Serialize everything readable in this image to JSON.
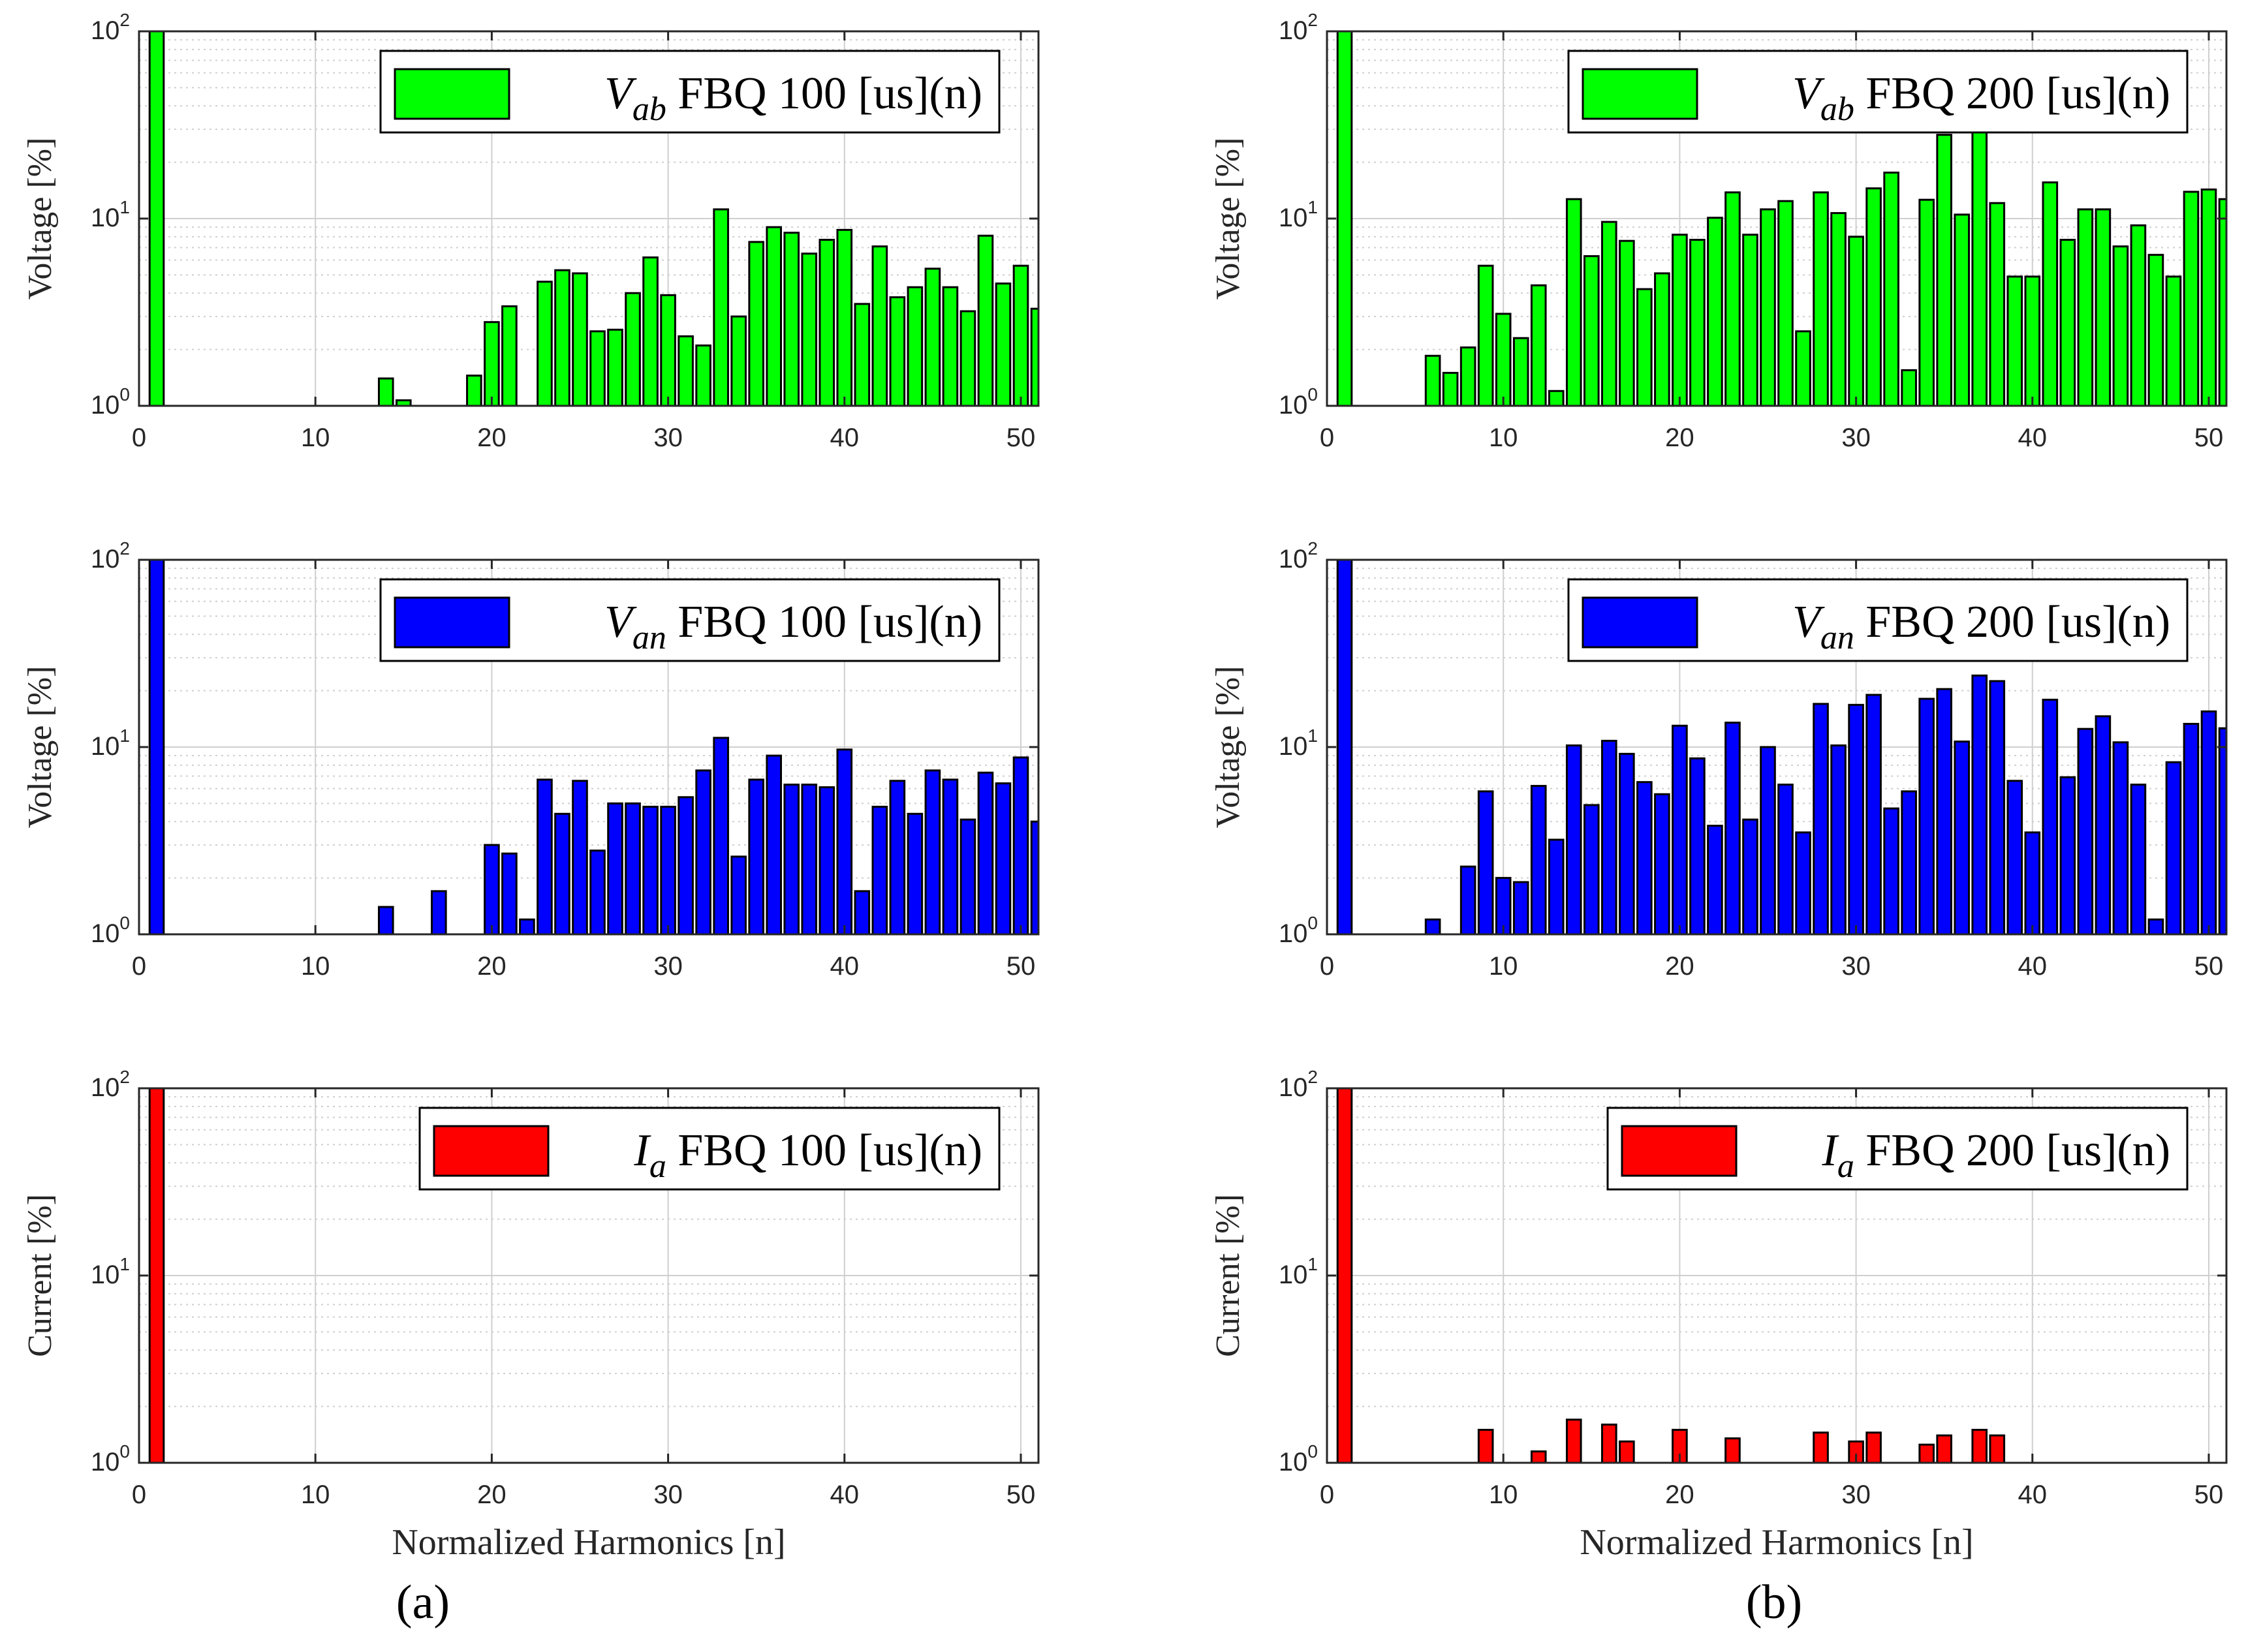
{
  "panel_labels": [
    "(a)",
    "(b)"
  ],
  "colors": {
    "green": "#00ff00",
    "blue": "#0000ff",
    "red": "#ff0000",
    "grid": "#cfcfcf",
    "axis": "#262626"
  },
  "chart_data": [
    {
      "type": "bar",
      "scale": "log",
      "panel": "a",
      "row": 0,
      "ylabel": "Voltage [%]",
      "xlabel": "",
      "legend": {
        "symbol": "V",
        "subscript": "ab",
        "label": "FBQ 100 [us](n)",
        "position": "top-right"
      },
      "color": "#00ff00",
      "xlim": [
        0,
        51
      ],
      "ylim": [
        1,
        100
      ],
      "xticks": [
        0,
        10,
        20,
        30,
        40,
        50
      ],
      "yticks": [
        {
          "base": "10",
          "exp": "0",
          "value": 1
        },
        {
          "base": "10",
          "exp": "1",
          "value": 10
        },
        {
          "base": "10",
          "exp": "2",
          "value": 100
        }
      ],
      "harmonics": [
        1,
        14,
        15,
        19,
        20,
        21,
        23,
        24,
        25,
        26,
        27,
        28,
        29,
        30,
        31,
        32,
        33,
        34,
        35,
        36,
        37,
        38,
        39,
        40,
        41,
        42,
        43,
        44,
        45,
        46,
        47,
        48,
        49,
        50,
        51
      ],
      "values": [
        100,
        1.4,
        1.07,
        1.45,
        2.8,
        3.4,
        4.6,
        5.3,
        5.1,
        2.5,
        2.55,
        4.0,
        6.2,
        3.9,
        2.35,
        2.1,
        11.2,
        3.0,
        7.5,
        9.0,
        8.4,
        6.5,
        7.7,
        8.7,
        3.5,
        7.1,
        3.8,
        4.3,
        5.4,
        4.3,
        3.2,
        8.1,
        4.5,
        5.6,
        3.3
      ]
    },
    {
      "type": "bar",
      "scale": "log",
      "panel": "b",
      "row": 0,
      "ylabel": "Voltage [%]",
      "xlabel": "",
      "legend": {
        "symbol": "V",
        "subscript": "ab",
        "label": "FBQ 200 [us](n)",
        "position": "top-right"
      },
      "color": "#00ff00",
      "xlim": [
        0,
        51
      ],
      "ylim": [
        1,
        100
      ],
      "xticks": [
        0,
        10,
        20,
        30,
        40,
        50
      ],
      "yticks": [
        {
          "base": "10",
          "exp": "0",
          "value": 1
        },
        {
          "base": "10",
          "exp": "1",
          "value": 10
        },
        {
          "base": "10",
          "exp": "2",
          "value": 100
        }
      ],
      "harmonics": [
        1,
        6,
        7,
        8,
        9,
        10,
        11,
        12,
        13,
        14,
        15,
        16,
        17,
        18,
        19,
        20,
        21,
        22,
        23,
        24,
        25,
        26,
        27,
        28,
        29,
        30,
        31,
        32,
        33,
        34,
        35,
        36,
        37,
        38,
        39,
        40,
        41,
        42,
        43,
        44,
        45,
        46,
        47,
        48,
        49,
        50,
        51
      ],
      "values": [
        100,
        1.85,
        1.5,
        2.05,
        5.6,
        3.1,
        2.3,
        4.4,
        1.2,
        12.7,
        6.3,
        9.6,
        7.6,
        4.2,
        5.1,
        8.2,
        7.7,
        10.1,
        13.8,
        8.2,
        11.2,
        12.4,
        2.5,
        13.8,
        10.7,
        8.0,
        14.5,
        17.6,
        1.55,
        12.6,
        28.0,
        10.5,
        29.5,
        12.1,
        4.9,
        4.9,
        15.6,
        7.7,
        11.2,
        11.2,
        7.1,
        9.2,
        6.4,
        4.9,
        13.9,
        14.3,
        12.7
      ]
    },
    {
      "type": "bar",
      "scale": "log",
      "panel": "a",
      "row": 1,
      "ylabel": "Voltage [%]",
      "xlabel": "",
      "legend": {
        "symbol": "V",
        "subscript": "an",
        "label": "FBQ 100 [us](n)",
        "position": "top-right"
      },
      "color": "#0000ff",
      "xlim": [
        0,
        51
      ],
      "ylim": [
        1,
        100
      ],
      "xticks": [
        0,
        10,
        20,
        30,
        40,
        50
      ],
      "yticks": [
        {
          "base": "10",
          "exp": "0",
          "value": 1
        },
        {
          "base": "10",
          "exp": "1",
          "value": 10
        },
        {
          "base": "10",
          "exp": "2",
          "value": 100
        }
      ],
      "harmonics": [
        1,
        14,
        17,
        20,
        21,
        22,
        23,
        24,
        25,
        26,
        27,
        28,
        29,
        30,
        31,
        32,
        33,
        34,
        35,
        36,
        37,
        38,
        39,
        40,
        41,
        42,
        43,
        44,
        45,
        46,
        47,
        48,
        49,
        50,
        51
      ],
      "values": [
        100,
        1.4,
        1.7,
        3.0,
        2.7,
        1.2,
        6.7,
        4.4,
        6.6,
        2.8,
        5.0,
        5.0,
        4.8,
        4.8,
        5.4,
        7.5,
        11.2,
        2.6,
        6.7,
        9.0,
        6.3,
        6.3,
        6.1,
        9.7,
        1.7,
        4.8,
        6.6,
        4.4,
        7.5,
        6.7,
        4.1,
        7.3,
        6.4,
        8.8,
        4.0
      ]
    },
    {
      "type": "bar",
      "scale": "log",
      "panel": "b",
      "row": 1,
      "ylabel": "Voltage [%]",
      "xlabel": "",
      "legend": {
        "symbol": "V",
        "subscript": "an",
        "label": "FBQ 200 [us](n)",
        "position": "top-right"
      },
      "color": "#0000ff",
      "xlim": [
        0,
        51
      ],
      "ylim": [
        1,
        100
      ],
      "xticks": [
        0,
        10,
        20,
        30,
        40,
        50
      ],
      "yticks": [
        {
          "base": "10",
          "exp": "0",
          "value": 1
        },
        {
          "base": "10",
          "exp": "1",
          "value": 10
        },
        {
          "base": "10",
          "exp": "2",
          "value": 100
        }
      ],
      "harmonics": [
        1,
        6,
        8,
        9,
        10,
        11,
        12,
        13,
        14,
        15,
        16,
        17,
        18,
        19,
        20,
        21,
        22,
        23,
        24,
        25,
        26,
        27,
        28,
        29,
        30,
        31,
        32,
        33,
        34,
        35,
        36,
        37,
        38,
        39,
        40,
        41,
        42,
        43,
        44,
        45,
        46,
        47,
        48,
        49,
        50,
        51
      ],
      "values": [
        100,
        1.2,
        2.3,
        5.8,
        2.0,
        1.9,
        6.2,
        3.2,
        10.2,
        4.9,
        10.8,
        9.2,
        6.5,
        5.6,
        13.0,
        8.7,
        3.8,
        13.5,
        4.1,
        10.0,
        6.3,
        3.5,
        17.0,
        10.2,
        16.8,
        19.0,
        4.7,
        5.8,
        18.1,
        20.4,
        10.7,
        24.1,
        22.5,
        6.6,
        3.5,
        17.9,
        6.9,
        12.5,
        14.6,
        10.6,
        6.3,
        1.2,
        8.3,
        13.3,
        15.5,
        12.6
      ]
    },
    {
      "type": "bar",
      "scale": "log",
      "panel": "a",
      "row": 2,
      "ylabel": "Current [%]",
      "xlabel": "Normalized Harmonics [n]",
      "legend": {
        "symbol": "I",
        "subscript": "a",
        "label": "FBQ 100 [us](n)",
        "position": "top-right"
      },
      "color": "#ff0000",
      "xlim": [
        0,
        51
      ],
      "ylim": [
        1,
        100
      ],
      "xticks": [
        0,
        10,
        20,
        30,
        40,
        50
      ],
      "yticks": [
        {
          "base": "10",
          "exp": "0",
          "value": 1
        },
        {
          "base": "10",
          "exp": "1",
          "value": 10
        },
        {
          "base": "10",
          "exp": "2",
          "value": 100
        }
      ],
      "harmonics": [
        1
      ],
      "values": [
        100
      ]
    },
    {
      "type": "bar",
      "scale": "log",
      "panel": "b",
      "row": 2,
      "ylabel": "Current [%]",
      "xlabel": "Normalized Harmonics [n]",
      "legend": {
        "symbol": "I",
        "subscript": "a",
        "label": "FBQ 200 [us](n)",
        "position": "top-right"
      },
      "color": "#ff0000",
      "xlim": [
        0,
        51
      ],
      "ylim": [
        1,
        100
      ],
      "xticks": [
        0,
        10,
        20,
        30,
        40,
        50
      ],
      "yticks": [
        {
          "base": "10",
          "exp": "0",
          "value": 1
        },
        {
          "base": "10",
          "exp": "1",
          "value": 10
        },
        {
          "base": "10",
          "exp": "2",
          "value": 100
        }
      ],
      "harmonics": [
        1,
        9,
        12,
        14,
        16,
        17,
        20,
        23,
        28,
        30,
        31,
        34,
        35,
        37,
        38
      ],
      "values": [
        100,
        1.5,
        1.15,
        1.7,
        1.6,
        1.3,
        1.5,
        1.35,
        1.45,
        1.3,
        1.45,
        1.25,
        1.4,
        1.5,
        1.4
      ]
    }
  ]
}
